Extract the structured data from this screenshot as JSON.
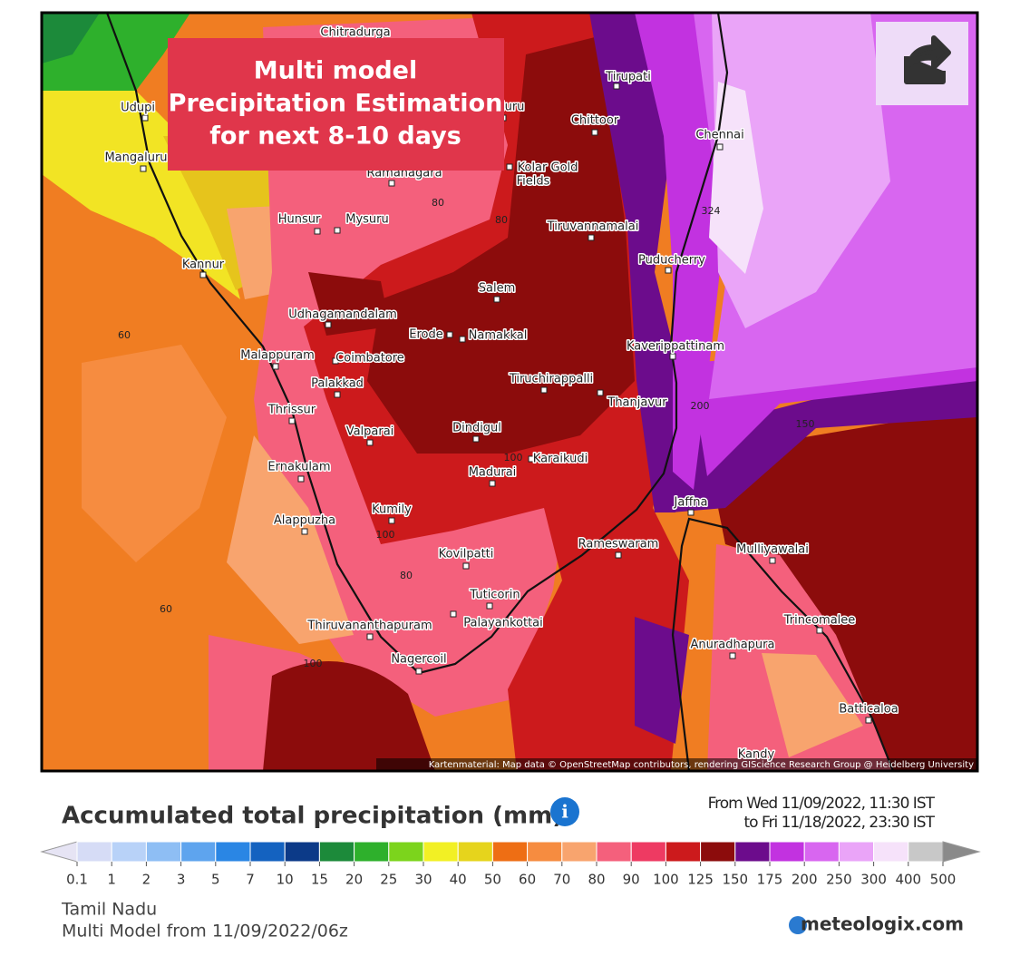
{
  "banner": {
    "lines": [
      "Multi model",
      "Precipitation Estimation",
      "for next 8-10 days"
    ]
  },
  "map": {
    "places": [
      "Chitradurga",
      "Udupi",
      "Mangaluru",
      "Bengaluru",
      "Tirupati",
      "Chittoor",
      "Chennai",
      "Kolar Gold",
      "Fields",
      "Ramanagara",
      "Hunsur",
      "Mysuru",
      "Tiruvannamalai",
      "Puducherry",
      "Kannur",
      "Salem",
      "Udhagamandalam",
      "Erode",
      "Namakkal",
      "Kaverippattinam",
      "Malappuram",
      "Coimbatore",
      "Palakkad",
      "Tiruchirappalli",
      "Thanjavur",
      "Thrissur",
      "Valparai",
      "Dindigul",
      "Karaikudi",
      "Ernakulam",
      "Madurai",
      "Jaffna",
      "Kumily",
      "Alappuzha",
      "Rameswaram",
      "Mulliyawalai",
      "Kovilpatti",
      "Tuticorin",
      "Palayankottai",
      "Trincomalee",
      "Thiruvananthapuram",
      "Anuradhapura",
      "Nagercoil",
      "Batticaloa",
      "Kandy"
    ],
    "contour_labels": [
      "324",
      "80",
      "80",
      "60",
      "200",
      "150",
      "100",
      "100",
      "80",
      "60",
      "100"
    ],
    "attribution": "Kartenmaterial: Map data © OpenStreetMap contributors, rendering GIScience Research Group @ Heidelberg University"
  },
  "legend": {
    "title": "Accumulated total precipitation (mm)",
    "date_from": "From Wed 11/09/2022, 11:30 IST",
    "date_to": "to Fri 11/18/2022, 23:30 IST",
    "thresholds": [
      0.1,
      1,
      2,
      3,
      5,
      7,
      10,
      15,
      20,
      25,
      30,
      40,
      50,
      60,
      70,
      80,
      90,
      100,
      125,
      150,
      175,
      200,
      250,
      300,
      400,
      500
    ],
    "colors": [
      "#e6e4f4",
      "#d6dcf6",
      "#b8d2f8",
      "#8ebef4",
      "#5ea4ee",
      "#2a86e4",
      "#1462c0",
      "#0c3a88",
      "#1c8a3a",
      "#2eb02c",
      "#7cd41c",
      "#f2f024",
      "#e6d41c",
      "#ee6e14",
      "#f68c40",
      "#f8a46e",
      "#f4607c",
      "#ee3a62",
      "#cc1a1c",
      "#8c0c0c",
      "#6c0c8c",
      "#c232e0",
      "#d866f0",
      "#eaa4f8",
      "#f6e2fa",
      "#c8c8c8",
      "#8a8a8a"
    ],
    "region": "Tamil Nadu",
    "model": "Multi Model from 11/09/2022/06z",
    "brand": "meteologix.com"
  }
}
